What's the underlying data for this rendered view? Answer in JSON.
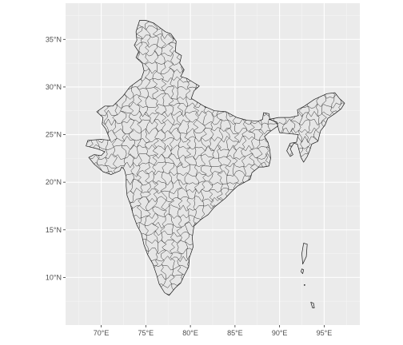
{
  "chart_data": {
    "type": "map",
    "title": "",
    "xlabel": "",
    "ylabel": "",
    "grid": true,
    "legend": "none",
    "xlim": [
      66.0,
      99.0
    ],
    "ylim": [
      5.0,
      38.8
    ],
    "x_ticks": [
      {
        "value": 70,
        "label": "70°E"
      },
      {
        "value": 75,
        "label": "75°E"
      },
      {
        "value": 80,
        "label": "80°E"
      },
      {
        "value": 85,
        "label": "85°E"
      },
      {
        "value": 90,
        "label": "90°E"
      },
      {
        "value": 95,
        "label": "95°E"
      }
    ],
    "y_ticks": [
      {
        "value": 10,
        "label": "10°N"
      },
      {
        "value": 15,
        "label": "15°N"
      },
      {
        "value": 20,
        "label": "20°N"
      },
      {
        "value": 25,
        "label": "25°N"
      },
      {
        "value": 30,
        "label": "30°N"
      },
      {
        "value": 35,
        "label": "35°N"
      }
    ],
    "colors": {
      "panel": "#ebebeb",
      "land_fill": "#e6e6e6",
      "border": "#1a1a1a",
      "grid": "#ffffff"
    }
  }
}
